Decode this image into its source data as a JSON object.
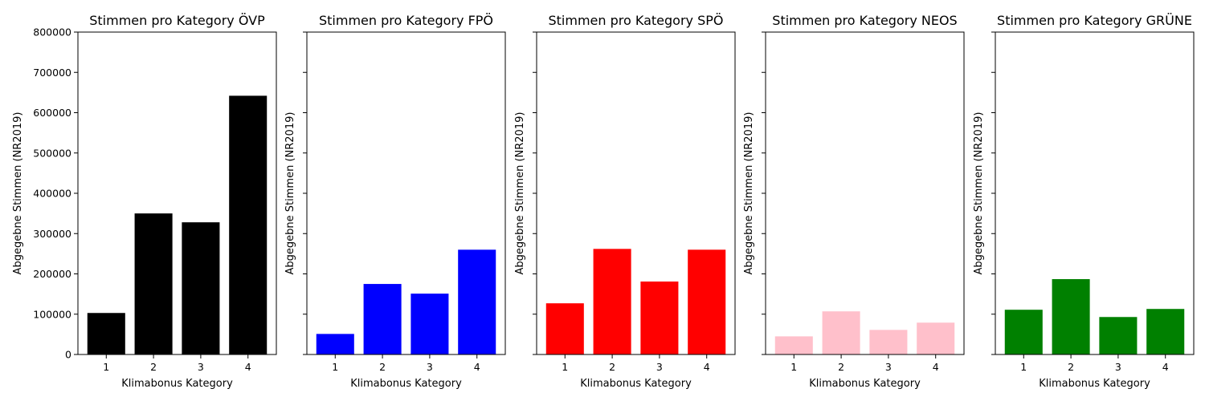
{
  "chart_data": [
    {
      "type": "bar",
      "title": "Stimmen pro Kategory ÖVP",
      "xlabel": "Klimabonus Kategory",
      "ylabel": "Abgegebne Stimmen (NR2019)",
      "categories": [
        "1",
        "2",
        "3",
        "4"
      ],
      "values": [
        103000,
        350000,
        328000,
        642000
      ],
      "color": "#000000",
      "ylim": [
        0,
        800000
      ],
      "yticks": [
        "0",
        "100000",
        "200000",
        "300000",
        "400000",
        "500000",
        "600000",
        "700000",
        "800000"
      ],
      "show_ytick_labels": true
    },
    {
      "type": "bar",
      "title": "Stimmen pro Kategory FPÖ",
      "xlabel": "Klimabonus Kategory",
      "ylabel": "Abgegebne Stimmen (NR2019)",
      "categories": [
        "1",
        "2",
        "3",
        "4"
      ],
      "values": [
        51000,
        175000,
        151000,
        260000
      ],
      "color": "#0000ff",
      "ylim": [
        0,
        800000
      ],
      "show_ytick_labels": false
    },
    {
      "type": "bar",
      "title": "Stimmen pro Kategory SPÖ",
      "xlabel": "Klimabonus Kategory",
      "ylabel": "Abgegebne Stimmen (NR2019)",
      "categories": [
        "1",
        "2",
        "3",
        "4"
      ],
      "values": [
        127000,
        262000,
        181000,
        260000
      ],
      "color": "#ff0000",
      "ylim": [
        0,
        800000
      ],
      "show_ytick_labels": false
    },
    {
      "type": "bar",
      "title": "Stimmen pro Kategory NEOS",
      "xlabel": "Klimabonus Kategory",
      "ylabel": "Abgegebne Stimmen (NR2019)",
      "categories": [
        "1",
        "2",
        "3",
        "4"
      ],
      "values": [
        45000,
        107000,
        61000,
        79000
      ],
      "color": "#ffc0cb",
      "ylim": [
        0,
        800000
      ],
      "show_ytick_labels": false
    },
    {
      "type": "bar",
      "title": "Stimmen pro Kategory GRÜNE",
      "xlabel": "Klimabonus Kategory",
      "ylabel": "Abgegebne Stimmen (NR2019)",
      "categories": [
        "1",
        "2",
        "3",
        "4"
      ],
      "values": [
        111000,
        187000,
        93000,
        113000
      ],
      "color": "#008000",
      "ylim": [
        0,
        800000
      ],
      "show_ytick_labels": false
    }
  ]
}
